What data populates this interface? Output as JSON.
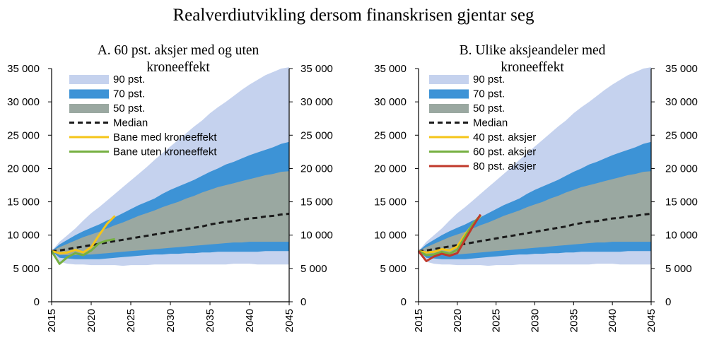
{
  "figure_title": "Realverdiutvikling dersom finanskrisen gjentar seg",
  "colors": {
    "band90": "#c5d2ee",
    "band70": "#3d93d6",
    "band50": "#9aa8a1",
    "median": "#1a1a1a",
    "bane_med": "#f5c518",
    "bane_uten": "#76b041",
    "aksjer40": "#f5c518",
    "aksjer60": "#76b041",
    "aksjer80": "#c0392b"
  },
  "chart_data": [
    {
      "type": "area",
      "title": "A. 60 pst. aksjer med og uten kroneeffekt",
      "xlim": [
        2015,
        2045
      ],
      "ylim": [
        0,
        35000
      ],
      "xticks": [
        2015,
        2020,
        2025,
        2030,
        2035,
        2040,
        2045
      ],
      "yticks": [
        0,
        5000,
        10000,
        15000,
        20000,
        25000,
        30000,
        35000
      ],
      "ytick_labels": [
        "0",
        "5 000",
        "10 000",
        "15 000",
        "20 000",
        "25 000",
        "30 000",
        "35 000"
      ],
      "grid": false,
      "legend_position": "top-left",
      "bands": [
        {
          "name": "90 pst.",
          "color_key": "band90",
          "x": [
            2015,
            2016,
            2017,
            2018,
            2019,
            2020,
            2021,
            2022,
            2023,
            2024,
            2025,
            2026,
            2027,
            2028,
            2029,
            2030,
            2031,
            2032,
            2033,
            2034,
            2035,
            2036,
            2037,
            2038,
            2039,
            2040,
            2041,
            2042,
            2043,
            2044,
            2045
          ],
          "upper": [
            7600,
            9000,
            10000,
            11000,
            12200,
            13300,
            14200,
            15200,
            16200,
            17200,
            18200,
            19200,
            20200,
            21300,
            22300,
            23300,
            24300,
            25300,
            26300,
            27200,
            28300,
            29200,
            30000,
            30900,
            31800,
            32600,
            33300,
            34000,
            34500,
            35000,
            35200
          ],
          "lower": [
            7600,
            6000,
            5700,
            5600,
            5600,
            5500,
            5500,
            5500,
            5500,
            5400,
            5500,
            5500,
            5500,
            5600,
            5600,
            5600,
            5600,
            5600,
            5600,
            5600,
            5600,
            5600,
            5600,
            5700,
            5700,
            5700,
            5600,
            5600,
            5600,
            5600,
            5600
          ]
        },
        {
          "name": "70 pst.",
          "color_key": "band70",
          "x": [
            2015,
            2016,
            2017,
            2018,
            2019,
            2020,
            2021,
            2022,
            2023,
            2024,
            2025,
            2026,
            2027,
            2028,
            2029,
            2030,
            2031,
            2032,
            2033,
            2034,
            2035,
            2036,
            2037,
            2038,
            2039,
            2040,
            2041,
            2042,
            2043,
            2044,
            2045
          ],
          "upper": [
            7600,
            8600,
            9300,
            10000,
            10600,
            11100,
            11600,
            12200,
            12700,
            13300,
            13900,
            14500,
            15000,
            15500,
            16200,
            16800,
            17300,
            17800,
            18300,
            18900,
            19500,
            20000,
            20600,
            21000,
            21500,
            22000,
            22400,
            22800,
            23200,
            23700,
            24000
          ],
          "lower": [
            7600,
            6600,
            6500,
            6400,
            6400,
            6400,
            6400,
            6500,
            6600,
            6700,
            6800,
            6900,
            7000,
            7100,
            7100,
            7200,
            7200,
            7300,
            7300,
            7400,
            7400,
            7500,
            7500,
            7500,
            7500,
            7500,
            7500,
            7600,
            7600,
            7600,
            7600
          ]
        },
        {
          "name": "50 pst.",
          "color_key": "band50",
          "x": [
            2015,
            2016,
            2017,
            2018,
            2019,
            2020,
            2021,
            2022,
            2023,
            2024,
            2025,
            2026,
            2027,
            2028,
            2029,
            2030,
            2031,
            2032,
            2033,
            2034,
            2035,
            2036,
            2037,
            2038,
            2039,
            2040,
            2041,
            2042,
            2043,
            2044,
            2045
          ],
          "upper": [
            7600,
            8200,
            8700,
            9200,
            9700,
            10100,
            10500,
            11000,
            11500,
            11900,
            12400,
            12900,
            13300,
            13700,
            14200,
            14600,
            15000,
            15500,
            15900,
            16400,
            16800,
            17200,
            17500,
            17800,
            18100,
            18400,
            18700,
            19000,
            19200,
            19500,
            19600
          ],
          "lower": [
            7600,
            7000,
            7000,
            7000,
            7100,
            7100,
            7200,
            7300,
            7400,
            7500,
            7600,
            7700,
            7800,
            7900,
            8000,
            8100,
            8200,
            8300,
            8400,
            8500,
            8600,
            8700,
            8800,
            8900,
            8900,
            9000,
            9000,
            9000,
            9000,
            9000,
            9000
          ]
        }
      ],
      "series": [
        {
          "name": "Median",
          "color_key": "median",
          "dashed": true,
          "x": [
            2015,
            2016,
            2017,
            2018,
            2019,
            2020,
            2021,
            2022,
            2023,
            2024,
            2025,
            2026,
            2027,
            2028,
            2029,
            2030,
            2031,
            2032,
            2033,
            2034,
            2035,
            2036,
            2037,
            2038,
            2039,
            2040,
            2041,
            2042,
            2043,
            2044,
            2045
          ],
          "y": [
            7600,
            7700,
            7900,
            8100,
            8300,
            8500,
            8700,
            8900,
            9100,
            9300,
            9500,
            9700,
            9900,
            10100,
            10300,
            10500,
            10700,
            10900,
            11100,
            11300,
            11600,
            11800,
            12000,
            12100,
            12300,
            12500,
            12600,
            12800,
            12900,
            13100,
            13200
          ]
        },
        {
          "name": "Bane med kroneeffekt",
          "color_key": "bane_med",
          "dashed": false,
          "x": [
            2015,
            2016,
            2017,
            2018,
            2019,
            2020,
            2021,
            2022,
            2023
          ],
          "y": [
            7600,
            7300,
            7400,
            7800,
            7400,
            8200,
            10000,
            11700,
            12900
          ]
        },
        {
          "name": "Bane uten kroneeffekt",
          "color_key": "bane_uten",
          "dashed": false,
          "x": [
            2015,
            2016,
            2017,
            2018,
            2019,
            2020,
            2021,
            2022,
            2023
          ],
          "y": [
            7600,
            5700,
            6700,
            7300,
            7000,
            7700,
            8800,
            9200,
            9400
          ]
        }
      ],
      "legend": [
        {
          "label": "90 pst.",
          "kind": "patch",
          "color_key": "band90"
        },
        {
          "label": "70 pst.",
          "kind": "patch",
          "color_key": "band70"
        },
        {
          "label": "50 pst.",
          "kind": "patch",
          "color_key": "band50"
        },
        {
          "label": "Median",
          "kind": "dash",
          "color_key": "median"
        },
        {
          "label": "Bane med kroneeffekt",
          "kind": "line",
          "color_key": "bane_med"
        },
        {
          "label": "Bane uten kroneeffekt",
          "kind": "line",
          "color_key": "bane_uten"
        }
      ]
    },
    {
      "type": "area",
      "title": "B. Ulike aksjeandeler med kroneeffekt",
      "xlim": [
        2015,
        2045
      ],
      "ylim": [
        0,
        35000
      ],
      "xticks": [
        2015,
        2020,
        2025,
        2030,
        2035,
        2040,
        2045
      ],
      "yticks": [
        0,
        5000,
        10000,
        15000,
        20000,
        25000,
        30000,
        35000
      ],
      "ytick_labels": [
        "0",
        "5 000",
        "10 000",
        "15 000",
        "20 000",
        "25 000",
        "30 000",
        "35 000"
      ],
      "grid": false,
      "legend_position": "top-left",
      "bands": [
        {
          "name": "90 pst.",
          "color_key": "band90",
          "x": [
            2015,
            2016,
            2017,
            2018,
            2019,
            2020,
            2021,
            2022,
            2023,
            2024,
            2025,
            2026,
            2027,
            2028,
            2029,
            2030,
            2031,
            2032,
            2033,
            2034,
            2035,
            2036,
            2037,
            2038,
            2039,
            2040,
            2041,
            2042,
            2043,
            2044,
            2045
          ],
          "upper": [
            7600,
            9000,
            10000,
            11000,
            12200,
            13300,
            14200,
            15200,
            16200,
            17200,
            18200,
            19200,
            20200,
            21300,
            22300,
            23300,
            24300,
            25300,
            26300,
            27200,
            28300,
            29200,
            30000,
            30900,
            31800,
            32600,
            33300,
            34000,
            34500,
            35000,
            35200
          ],
          "lower": [
            7600,
            6000,
            5700,
            5600,
            5600,
            5500,
            5500,
            5500,
            5500,
            5400,
            5500,
            5500,
            5500,
            5600,
            5600,
            5600,
            5600,
            5600,
            5600,
            5600,
            5600,
            5600,
            5600,
            5700,
            5700,
            5700,
            5600,
            5600,
            5600,
            5600,
            5600
          ]
        },
        {
          "name": "70 pst.",
          "color_key": "band70",
          "x": [
            2015,
            2016,
            2017,
            2018,
            2019,
            2020,
            2021,
            2022,
            2023,
            2024,
            2025,
            2026,
            2027,
            2028,
            2029,
            2030,
            2031,
            2032,
            2033,
            2034,
            2035,
            2036,
            2037,
            2038,
            2039,
            2040,
            2041,
            2042,
            2043,
            2044,
            2045
          ],
          "upper": [
            7600,
            8600,
            9300,
            10000,
            10600,
            11100,
            11600,
            12200,
            12700,
            13300,
            13900,
            14500,
            15000,
            15500,
            16200,
            16800,
            17300,
            17800,
            18300,
            18900,
            19500,
            20000,
            20600,
            21000,
            21500,
            22000,
            22400,
            22800,
            23200,
            23700,
            24000
          ],
          "lower": [
            7600,
            6600,
            6500,
            6400,
            6400,
            6400,
            6400,
            6500,
            6600,
            6700,
            6800,
            6900,
            7000,
            7100,
            7100,
            7200,
            7200,
            7300,
            7300,
            7400,
            7400,
            7500,
            7500,
            7500,
            7500,
            7500,
            7500,
            7600,
            7600,
            7600,
            7600
          ]
        },
        {
          "name": "50 pst.",
          "color_key": "band50",
          "x": [
            2015,
            2016,
            2017,
            2018,
            2019,
            2020,
            2021,
            2022,
            2023,
            2024,
            2025,
            2026,
            2027,
            2028,
            2029,
            2030,
            2031,
            2032,
            2033,
            2034,
            2035,
            2036,
            2037,
            2038,
            2039,
            2040,
            2041,
            2042,
            2043,
            2044,
            2045
          ],
          "upper": [
            7600,
            8200,
            8700,
            9200,
            9700,
            10100,
            10500,
            11000,
            11500,
            11900,
            12400,
            12900,
            13300,
            13700,
            14200,
            14600,
            15000,
            15500,
            15900,
            16400,
            16800,
            17200,
            17500,
            17800,
            18100,
            18400,
            18700,
            19000,
            19200,
            19500,
            19600
          ],
          "lower": [
            7600,
            7000,
            7000,
            7000,
            7100,
            7100,
            7200,
            7300,
            7400,
            7500,
            7600,
            7700,
            7800,
            7900,
            8000,
            8100,
            8200,
            8300,
            8400,
            8500,
            8600,
            8700,
            8800,
            8900,
            8900,
            9000,
            9000,
            9000,
            9000,
            9000,
            9000
          ]
        }
      ],
      "series": [
        {
          "name": "Median",
          "color_key": "median",
          "dashed": true,
          "x": [
            2015,
            2016,
            2017,
            2018,
            2019,
            2020,
            2021,
            2022,
            2023,
            2024,
            2025,
            2026,
            2027,
            2028,
            2029,
            2030,
            2031,
            2032,
            2033,
            2034,
            2035,
            2036,
            2037,
            2038,
            2039,
            2040,
            2041,
            2042,
            2043,
            2044,
            2045
          ],
          "y": [
            7600,
            7700,
            7900,
            8100,
            8300,
            8500,
            8700,
            8900,
            9100,
            9300,
            9500,
            9700,
            9900,
            10100,
            10300,
            10500,
            10700,
            10900,
            11100,
            11300,
            11600,
            11800,
            12000,
            12100,
            12300,
            12500,
            12600,
            12800,
            12900,
            13100,
            13200
          ]
        },
        {
          "name": "40 pst. aksjer",
          "color_key": "aksjer40",
          "dashed": false,
          "x": [
            2015,
            2016,
            2017,
            2018,
            2019,
            2020,
            2021,
            2022,
            2023
          ],
          "y": [
            7600,
            7400,
            7500,
            7900,
            7700,
            8300,
            10100,
            11600,
            12900
          ]
        },
        {
          "name": "60 pst. aksjer",
          "color_key": "aksjer60",
          "dashed": false,
          "x": [
            2015,
            2016,
            2017,
            2018,
            2019,
            2020,
            2021,
            2022,
            2023
          ],
          "y": [
            7600,
            7000,
            7100,
            7500,
            7200,
            7800,
            9800,
            11700,
            13000
          ]
        },
        {
          "name": "80 pst. aksjer",
          "color_key": "aksjer80",
          "dashed": false,
          "x": [
            2015,
            2016,
            2017,
            2018,
            2019,
            2020,
            2021,
            2022,
            2023
          ],
          "y": [
            7600,
            6100,
            6800,
            7200,
            6900,
            7300,
            9300,
            11300,
            13100
          ]
        }
      ],
      "legend": [
        {
          "label": "90 pst.",
          "kind": "patch",
          "color_key": "band90"
        },
        {
          "label": "70 pst.",
          "kind": "patch",
          "color_key": "band70"
        },
        {
          "label": "50 pst.",
          "kind": "patch",
          "color_key": "band50"
        },
        {
          "label": "Median",
          "kind": "dash",
          "color_key": "median"
        },
        {
          "label": "40 pst. aksjer",
          "kind": "line",
          "color_key": "aksjer40"
        },
        {
          "label": "60 pst. aksjer",
          "kind": "line",
          "color_key": "aksjer60"
        },
        {
          "label": "80 pst. aksjer",
          "kind": "line",
          "color_key": "aksjer80"
        }
      ]
    }
  ]
}
